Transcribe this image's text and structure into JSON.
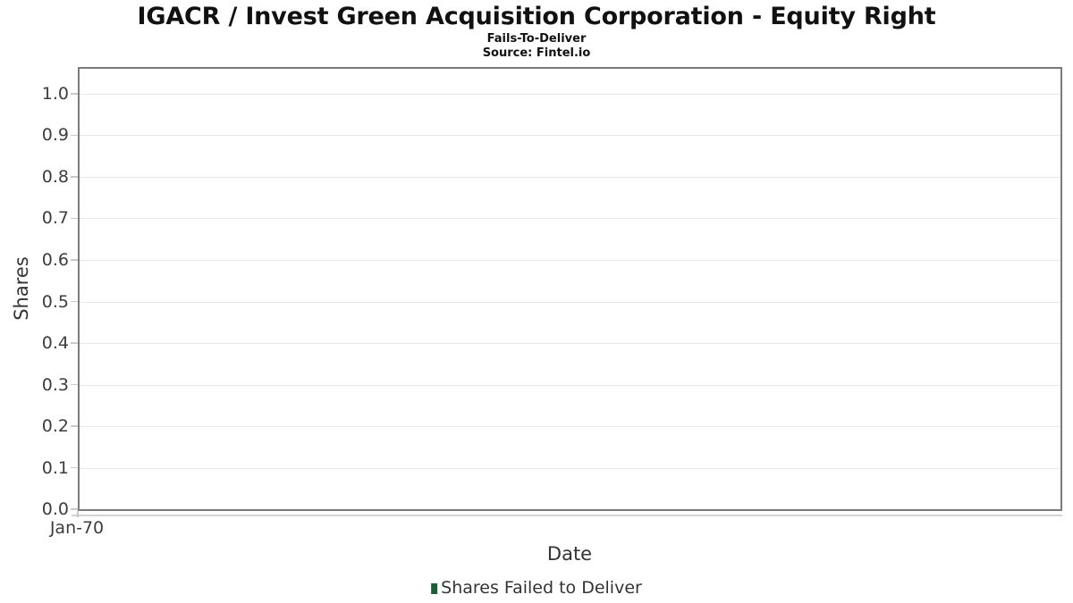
{
  "header": {
    "title": "IGACR / Invest Green Acquisition Corporation - Equity Right",
    "subtitle": "Fails-To-Deliver",
    "source": "Source: Fintel.io"
  },
  "chart_data": {
    "type": "bar",
    "title": "IGACR / Invest Green Acquisition Corporation - Equity Right",
    "subtitle": "Fails-To-Deliver",
    "source_note": "Source: Fintel.io",
    "xlabel": "Date",
    "ylabel": "Shares",
    "ylim": [
      0,
      1.06
    ],
    "y_ticks": [
      0.0,
      0.1,
      0.2,
      0.3,
      0.4,
      0.5,
      0.6,
      0.7,
      0.8,
      0.9,
      1.0
    ],
    "x_tick_labels": [
      "Jan-70"
    ],
    "grid": true,
    "legend_position": "bottom-center",
    "series": [
      {
        "name": "Shares Failed to Deliver",
        "color": "#1f5c38",
        "x": [],
        "values": []
      }
    ]
  },
  "colors": {
    "plot_border": "#7b7b7b",
    "gridline": "#e7e7e7",
    "tick": "#c9c9c9",
    "axis_line": "#d4d4d4",
    "label_text": "#3d3d3d",
    "legend_green": "#1f5c38"
  }
}
